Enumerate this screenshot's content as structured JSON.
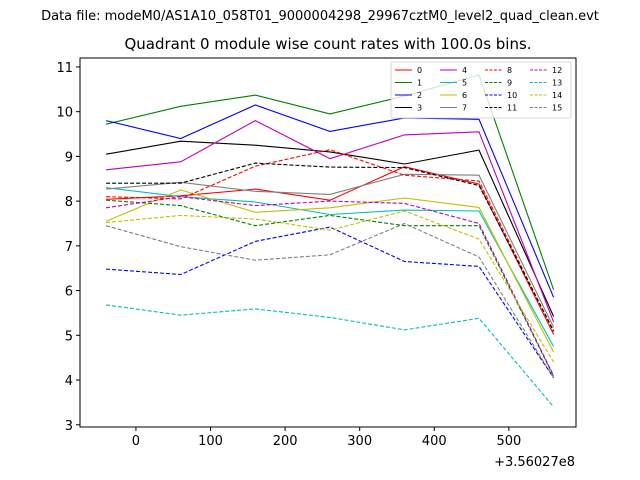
{
  "chart_data": {
    "type": "line",
    "suptitle": "Data file: modeM0/AS1A10_058T01_9000004298_29967cztM0_level2_quad_clean.evt",
    "title": "Quadrant 0 module wise count rates with 100.0s bins.",
    "xlabel": "",
    "ylabel": "",
    "x_offset_label": "+3.56027e8",
    "x": [
      -40,
      60,
      160,
      260,
      360,
      460,
      560
    ],
    "xlim": [
      -75,
      590
    ],
    "ylim": [
      2.95,
      11.2
    ],
    "xticks": [
      0,
      100,
      200,
      300,
      400,
      500
    ],
    "yticks": [
      3,
      4,
      5,
      6,
      7,
      8,
      9,
      10,
      11
    ],
    "legend_position": "top-right",
    "legend_columns": 4,
    "series": [
      {
        "name": "0",
        "color": "#ff0000",
        "style": "solid",
        "values": [
          8.04,
          8.12,
          8.27,
          8.02,
          8.77,
          8.38,
          5.02
        ]
      },
      {
        "name": "1",
        "color": "#008000",
        "style": "solid",
        "values": [
          9.72,
          10.12,
          10.37,
          9.95,
          10.35,
          10.82,
          6.02
        ]
      },
      {
        "name": "2",
        "color": "#0000ff",
        "style": "solid",
        "values": [
          9.8,
          9.4,
          10.15,
          9.56,
          9.86,
          9.83,
          5.85
        ]
      },
      {
        "name": "3",
        "color": "#000000",
        "style": "solid",
        "values": [
          9.05,
          9.34,
          9.25,
          9.1,
          8.83,
          9.14,
          5.42
        ]
      },
      {
        "name": "4",
        "color": "#bf00bf",
        "style": "solid",
        "values": [
          8.7,
          8.88,
          9.8,
          8.95,
          9.48,
          9.55,
          5.3
        ]
      },
      {
        "name": "5",
        "color": "#00bfbf",
        "style": "solid",
        "values": [
          8.3,
          8.1,
          7.98,
          7.7,
          7.8,
          7.78,
          4.75
        ]
      },
      {
        "name": "6",
        "color": "#bfbf00",
        "style": "solid",
        "values": [
          7.55,
          8.25,
          7.75,
          7.85,
          8.07,
          7.86,
          4.62
        ]
      },
      {
        "name": "7",
        "color": "#808080",
        "style": "solid",
        "values": [
          8.27,
          8.42,
          8.22,
          8.15,
          8.6,
          8.58,
          5.18
        ]
      },
      {
        "name": "8",
        "color": "#ff0000",
        "style": "dashed",
        "values": [
          8.1,
          8.05,
          8.78,
          9.15,
          8.58,
          8.45,
          5.08
        ]
      },
      {
        "name": "9",
        "color": "#008000",
        "style": "dashed",
        "values": [
          8.02,
          7.9,
          7.45,
          7.68,
          7.45,
          7.45,
          4.08
        ]
      },
      {
        "name": "10",
        "color": "#0000ff",
        "style": "dashed",
        "values": [
          6.48,
          6.36,
          7.1,
          7.42,
          6.65,
          6.54,
          4.05
        ]
      },
      {
        "name": "11",
        "color": "#000000",
        "style": "dashed",
        "values": [
          8.4,
          8.4,
          8.85,
          8.76,
          8.75,
          8.35,
          5.1
        ]
      },
      {
        "name": "12",
        "color": "#bf00bf",
        "style": "dashed",
        "values": [
          7.85,
          8.1,
          7.9,
          8.0,
          7.95,
          7.5,
          4.1
        ]
      },
      {
        "name": "13",
        "color": "#00bfbf",
        "style": "dashed",
        "values": [
          5.68,
          5.45,
          5.59,
          5.4,
          5.12,
          5.38,
          3.4
        ]
      },
      {
        "name": "14",
        "color": "#bfbf00",
        "style": "dashed",
        "values": [
          7.52,
          7.68,
          7.6,
          7.35,
          7.78,
          7.15,
          4.4
        ]
      },
      {
        "name": "15",
        "color": "#808080",
        "style": "dashed",
        "values": [
          7.45,
          6.98,
          6.68,
          6.8,
          7.5,
          6.75,
          4.05
        ]
      }
    ]
  }
}
